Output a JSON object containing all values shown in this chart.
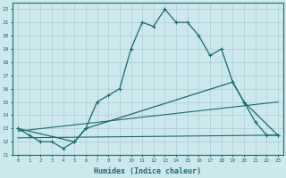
{
  "xlabel": "Humidex (Indice chaleur)",
  "bg_color": "#cce8ec",
  "grid_color": "#aacdd4",
  "line_color": "#1a6b6b",
  "xlim": [
    -0.5,
    23.5
  ],
  "ylim": [
    11,
    22.5
  ],
  "xticks": [
    0,
    1,
    2,
    3,
    4,
    5,
    6,
    7,
    8,
    9,
    10,
    11,
    12,
    13,
    14,
    15,
    16,
    17,
    18,
    19,
    20,
    21,
    22,
    23
  ],
  "yticks": [
    11,
    12,
    13,
    14,
    15,
    16,
    17,
    18,
    19,
    20,
    21,
    22
  ],
  "line1_x": [
    0,
    1,
    2,
    3,
    4,
    5,
    6,
    7,
    8,
    9,
    10,
    11,
    12,
    13,
    14,
    15,
    16,
    17,
    18,
    19,
    20,
    21,
    22,
    23
  ],
  "line1_y": [
    13,
    12.5,
    12,
    12,
    11.5,
    12,
    13,
    15,
    15.5,
    16,
    19,
    21,
    20.7,
    22,
    21,
    21,
    20,
    18.5,
    19,
    16.5,
    15,
    13.5,
    12.5,
    12.5
  ],
  "line2_x": [
    0,
    5,
    6,
    19,
    20,
    23
  ],
  "line2_y": [
    13,
    12,
    13,
    16.5,
    15,
    12.5
  ],
  "line3_x": [
    0,
    23
  ],
  "line3_y": [
    12.8,
    15.0
  ],
  "line4_x": [
    0,
    23
  ],
  "line4_y": [
    12.3,
    12.5
  ]
}
